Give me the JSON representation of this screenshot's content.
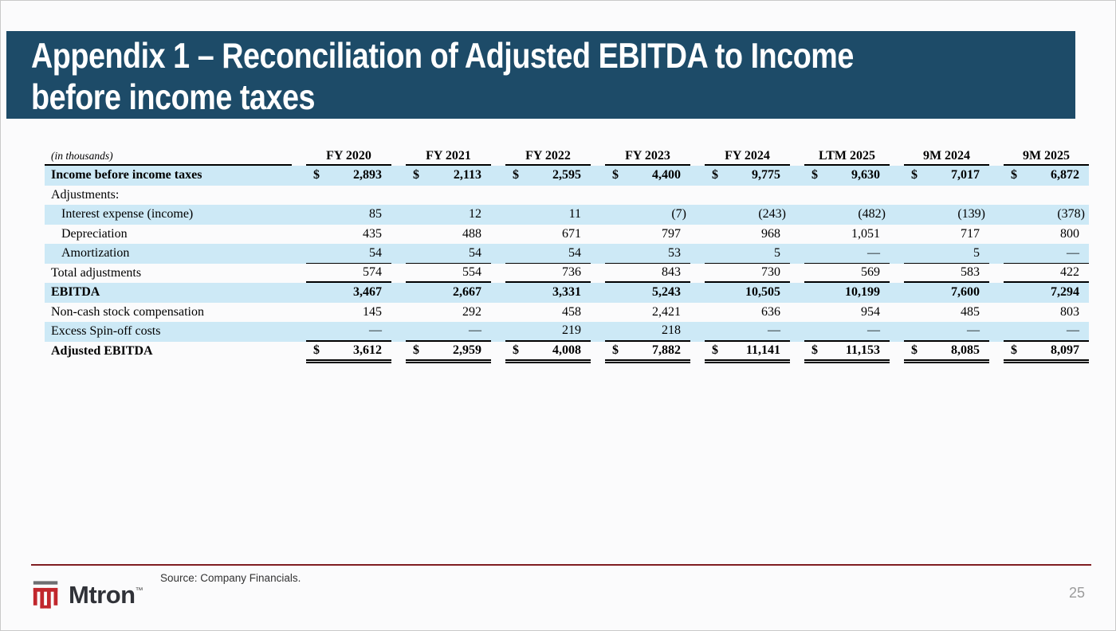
{
  "header": {
    "title_lines": [
      "Appendix 1 – Reconciliation of Adjusted EBITDA to Income",
      "before income taxes"
    ]
  },
  "table": {
    "unit_label": "(in thousands)",
    "columns": [
      "FY 2020",
      "FY 2021",
      "FY 2022",
      "FY 2023",
      "FY 2024",
      "LTM 2025",
      "9M 2024",
      "9M 2025"
    ],
    "rows": [
      {
        "label": "Income before income taxes",
        "bold": true,
        "shade": true,
        "dollar": true,
        "values": [
          "2,893",
          "2,113",
          "2,595",
          "4,400",
          "9,775",
          "9,630",
          "7,017",
          "6,872"
        ]
      },
      {
        "label": "Adjustments:",
        "shade": false,
        "values": []
      },
      {
        "label": "Interest expense (income)",
        "indent": true,
        "shade": true,
        "values": [
          "85",
          "12",
          "11",
          "(7)",
          "(243)",
          "(482)",
          "(139)",
          "(378)"
        ]
      },
      {
        "label": "Depreciation",
        "indent": true,
        "shade": false,
        "values": [
          "435",
          "488",
          "671",
          "797",
          "968",
          "1,051",
          "717",
          "800"
        ]
      },
      {
        "label": "Amortization",
        "indent": true,
        "shade": true,
        "underline": "thin",
        "values": [
          "54",
          "54",
          "54",
          "53",
          "5",
          "—",
          "5",
          "—"
        ]
      },
      {
        "label": "Total adjustments",
        "shade": false,
        "underline": "thick",
        "values": [
          "574",
          "554",
          "736",
          "843",
          "730",
          "569",
          "583",
          "422"
        ]
      },
      {
        "label": "EBITDA",
        "bold": true,
        "shade": true,
        "values": [
          "3,467",
          "2,667",
          "3,331",
          "5,243",
          "10,505",
          "10,199",
          "7,600",
          "7,294"
        ]
      },
      {
        "label": "Non-cash stock compensation",
        "shade": false,
        "values": [
          "145",
          "292",
          "458",
          "2,421",
          "636",
          "954",
          "485",
          "803"
        ]
      },
      {
        "label": "Excess Spin-off costs",
        "shade": true,
        "underline": "thick",
        "values": [
          "—",
          "—",
          "219",
          "218",
          "—",
          "—",
          "—",
          "—"
        ]
      },
      {
        "label": "Adjusted EBITDA",
        "bold": true,
        "shade": false,
        "dollar": true,
        "underline": "double",
        "values": [
          "3,612",
          "2,959",
          "4,008",
          "7,882",
          "11,141",
          "11,153",
          "8,085",
          "8,097"
        ]
      }
    ],
    "dollar_symbol": "$"
  },
  "footer": {
    "source_note": "Source: Company Financials.",
    "brand": "Mtron",
    "trademark": "™",
    "page_number": "25"
  },
  "colors": {
    "banner_blue": "#1d4b68",
    "row_shade_blue": "#cde9f6",
    "divider_red": "#7f1d21",
    "logo_red": "#c1272d",
    "logo_gray": "#6d6e71"
  }
}
